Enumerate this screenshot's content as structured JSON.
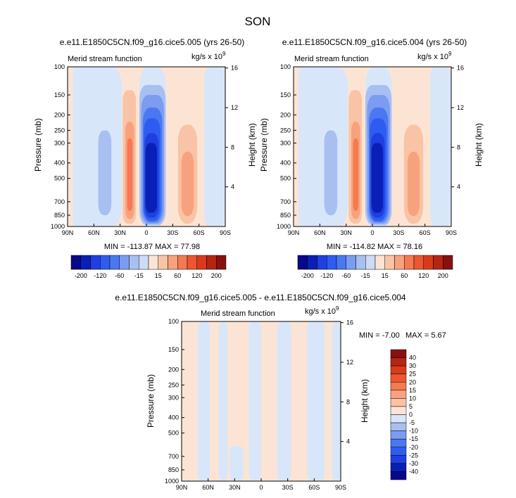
{
  "season": "SON",
  "panels": [
    {
      "title": "e.e11.E1850C5CN.f09_g16.cice5.005 (yrs 26-50)",
      "left_label": "Merid stream function",
      "units_base": "kg/s x 10",
      "units_exp": "9",
      "stats": "MIN = -113.87   MAX =  77.98",
      "ylabel": "Pressure (mb)",
      "ylabel_right": "Height (km)"
    },
    {
      "title": "e.e11.E1850C5CN.f09_g16.cice5.004 (yrs 26-50)",
      "left_label": "Merid stream function",
      "units_base": "kg/s x 10",
      "units_exp": "9",
      "stats": "MIN = -114.82   MAX =  78.16",
      "ylabel": "Pressure (mb)",
      "ylabel_right": "Height (km)"
    },
    {
      "title": "e.e11.E1850C5CN.f09_g16.cice5.005 - e.e11.E1850C5CN.f09_g16.cice5.004",
      "left_label": "Merid stream function",
      "units_base": "kg/s x 10",
      "units_exp": "9",
      "stats_min": "MIN =  -7.00",
      "stats_max": "MAX =   5.67",
      "ylabel": "Pressure (mb)",
      "ylabel_right": "Height (km)"
    }
  ],
  "chart_data": [
    {
      "type": "heatmap",
      "title": "e.e11.E1850C5CN.f09_g16.cice5.005 (yrs 26-50)",
      "xlabel": "",
      "ylabel": "Pressure (mb)",
      "ylabel_right": "Height (km)",
      "x_ticks": [
        "90N",
        "60N",
        "30N",
        "0",
        "30S",
        "60S",
        "90S"
      ],
      "y_ticks": [
        "100",
        "150",
        "200",
        "250",
        "300",
        "400",
        "500",
        "700",
        "850",
        "1000"
      ],
      "y_ticks_right": [
        "16",
        "12",
        "8",
        "4"
      ],
      "min": -113.87,
      "max": 77.98,
      "cells": [
        {
          "lat": 40,
          "p": 500,
          "value": -30
        },
        {
          "lat": 22,
          "p": 400,
          "value": 60
        },
        {
          "lat": 10,
          "p": 400,
          "value": -15
        },
        {
          "lat": -5,
          "p": 450,
          "value": -110
        },
        {
          "lat": -45,
          "p": 500,
          "value": 30
        }
      ]
    },
    {
      "type": "heatmap",
      "title": "e.e11.E1850C5CN.f09_g16.cice5.004 (yrs 26-50)",
      "xlabel": "",
      "ylabel": "Pressure (mb)",
      "ylabel_right": "Height (km)",
      "x_ticks": [
        "90N",
        "60N",
        "30N",
        "0",
        "30S",
        "60S",
        "90S"
      ],
      "y_ticks": [
        "100",
        "150",
        "200",
        "250",
        "300",
        "400",
        "500",
        "700",
        "850",
        "1000"
      ],
      "y_ticks_right": [
        "16",
        "12",
        "8",
        "4"
      ],
      "min": -114.82,
      "max": 78.16,
      "cells": [
        {
          "lat": 40,
          "p": 500,
          "value": -30
        },
        {
          "lat": 22,
          "p": 400,
          "value": 60
        },
        {
          "lat": 10,
          "p": 400,
          "value": -15
        },
        {
          "lat": -5,
          "p": 450,
          "value": -110
        },
        {
          "lat": -45,
          "p": 500,
          "value": 30
        }
      ]
    },
    {
      "type": "heatmap",
      "title": "e.e11.E1850C5CN.f09_g16.cice5.005 - e.e11.E1850C5CN.f09_g16.cice5.004",
      "xlabel": "",
      "ylabel": "Pressure (mb)",
      "ylabel_right": "Height (km)",
      "x_ticks": [
        "90N",
        "60N",
        "30N",
        "0",
        "30S",
        "60S",
        "90S"
      ],
      "y_ticks": [
        "100",
        "150",
        "200",
        "250",
        "300",
        "400",
        "500",
        "700",
        "850",
        "1000"
      ],
      "y_ticks_right": [
        "16",
        "12",
        "8",
        "4"
      ],
      "min": -7.0,
      "max": 5.67
    }
  ],
  "colorbar_top": {
    "labels": [
      "-200",
      "-120",
      "-60",
      "-15",
      "15",
      "60",
      "120",
      "200"
    ],
    "colors": [
      "#08088c",
      "#0a1fb5",
      "#1f3fe0",
      "#2f5cf0",
      "#4a78f2",
      "#7b9cf0",
      "#a8bff2",
      "#cddcf5",
      "#fce4d4",
      "#f9c3a5",
      "#f7a27c",
      "#f47a52",
      "#ec5630",
      "#d93a1c",
      "#b52514",
      "#8a1010"
    ]
  },
  "colorbar_diff": {
    "labels": [
      "40",
      "30",
      "25",
      "20",
      "15",
      "10",
      "5",
      "0",
      "-5",
      "-10",
      "-15",
      "-20",
      "-25",
      "-30",
      "-40"
    ],
    "colors": [
      "#8a1010",
      "#b52514",
      "#d93a1c",
      "#ec5630",
      "#f47a52",
      "#f7a27c",
      "#f9c3a5",
      "#fce4d4",
      "#d8e6fa",
      "#a8bff2",
      "#7b9cf0",
      "#4a78f2",
      "#2f5cf0",
      "#1f3fe0",
      "#0a1fb5",
      "#08088c"
    ]
  },
  "palette": {
    "pos1": "#fce4d4",
    "pos2": "#f9c3a5",
    "pos3": "#f7a27c",
    "pos4": "#f47a52",
    "neg1": "#d8e6fa",
    "neg2": "#a8bff2",
    "neg3": "#7b9cf0",
    "neg4": "#4a78f2",
    "neg5": "#2f5cf0",
    "neg6": "#1f3fe0",
    "neg7": "#0a1fb5"
  }
}
